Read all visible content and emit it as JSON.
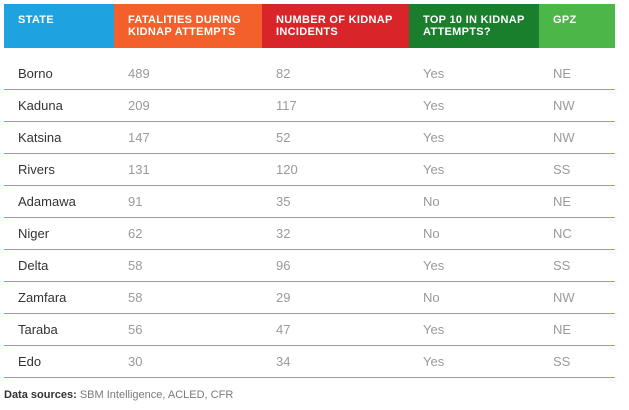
{
  "colors": {
    "state_header": "#1fa3e0",
    "fatalities_header": "#f4602b",
    "incidents_header": "#d9252a",
    "top10_header": "#1a7f2c",
    "gpz_header": "#4cb648",
    "row_divider": "#e8885a"
  },
  "chart_data": {
    "type": "table",
    "columns": [
      "STATE",
      "FATALITIES DURING KIDNAP ATTEMPTS",
      "NUMBER OF KIDNAP INCIDENTS",
      "TOP 10 IN KIDNAP ATTEMPTS?",
      "GPZ"
    ],
    "rows": [
      [
        "Borno",
        "489",
        "82",
        "Yes",
        "NE"
      ],
      [
        "Kaduna",
        "209",
        "117",
        "Yes",
        "NW"
      ],
      [
        "Katsina",
        "147",
        "52",
        "Yes",
        "NW"
      ],
      [
        "Rivers",
        "131",
        "120",
        "Yes",
        "SS"
      ],
      [
        "Adamawa",
        "91",
        "35",
        "No",
        "NE"
      ],
      [
        "Niger",
        "62",
        "32",
        "No",
        "NC"
      ],
      [
        "Delta",
        "58",
        "96",
        "Yes",
        "SS"
      ],
      [
        "Zamfara",
        "58",
        "29",
        "No",
        "NW"
      ],
      [
        "Taraba",
        "56",
        "47",
        "Yes",
        "NE"
      ],
      [
        "Edo",
        "30",
        "34",
        "Yes",
        "SS"
      ]
    ]
  },
  "footer": {
    "label": "Data sources:",
    "text": " SBM Intelligence, ACLED, CFR"
  }
}
